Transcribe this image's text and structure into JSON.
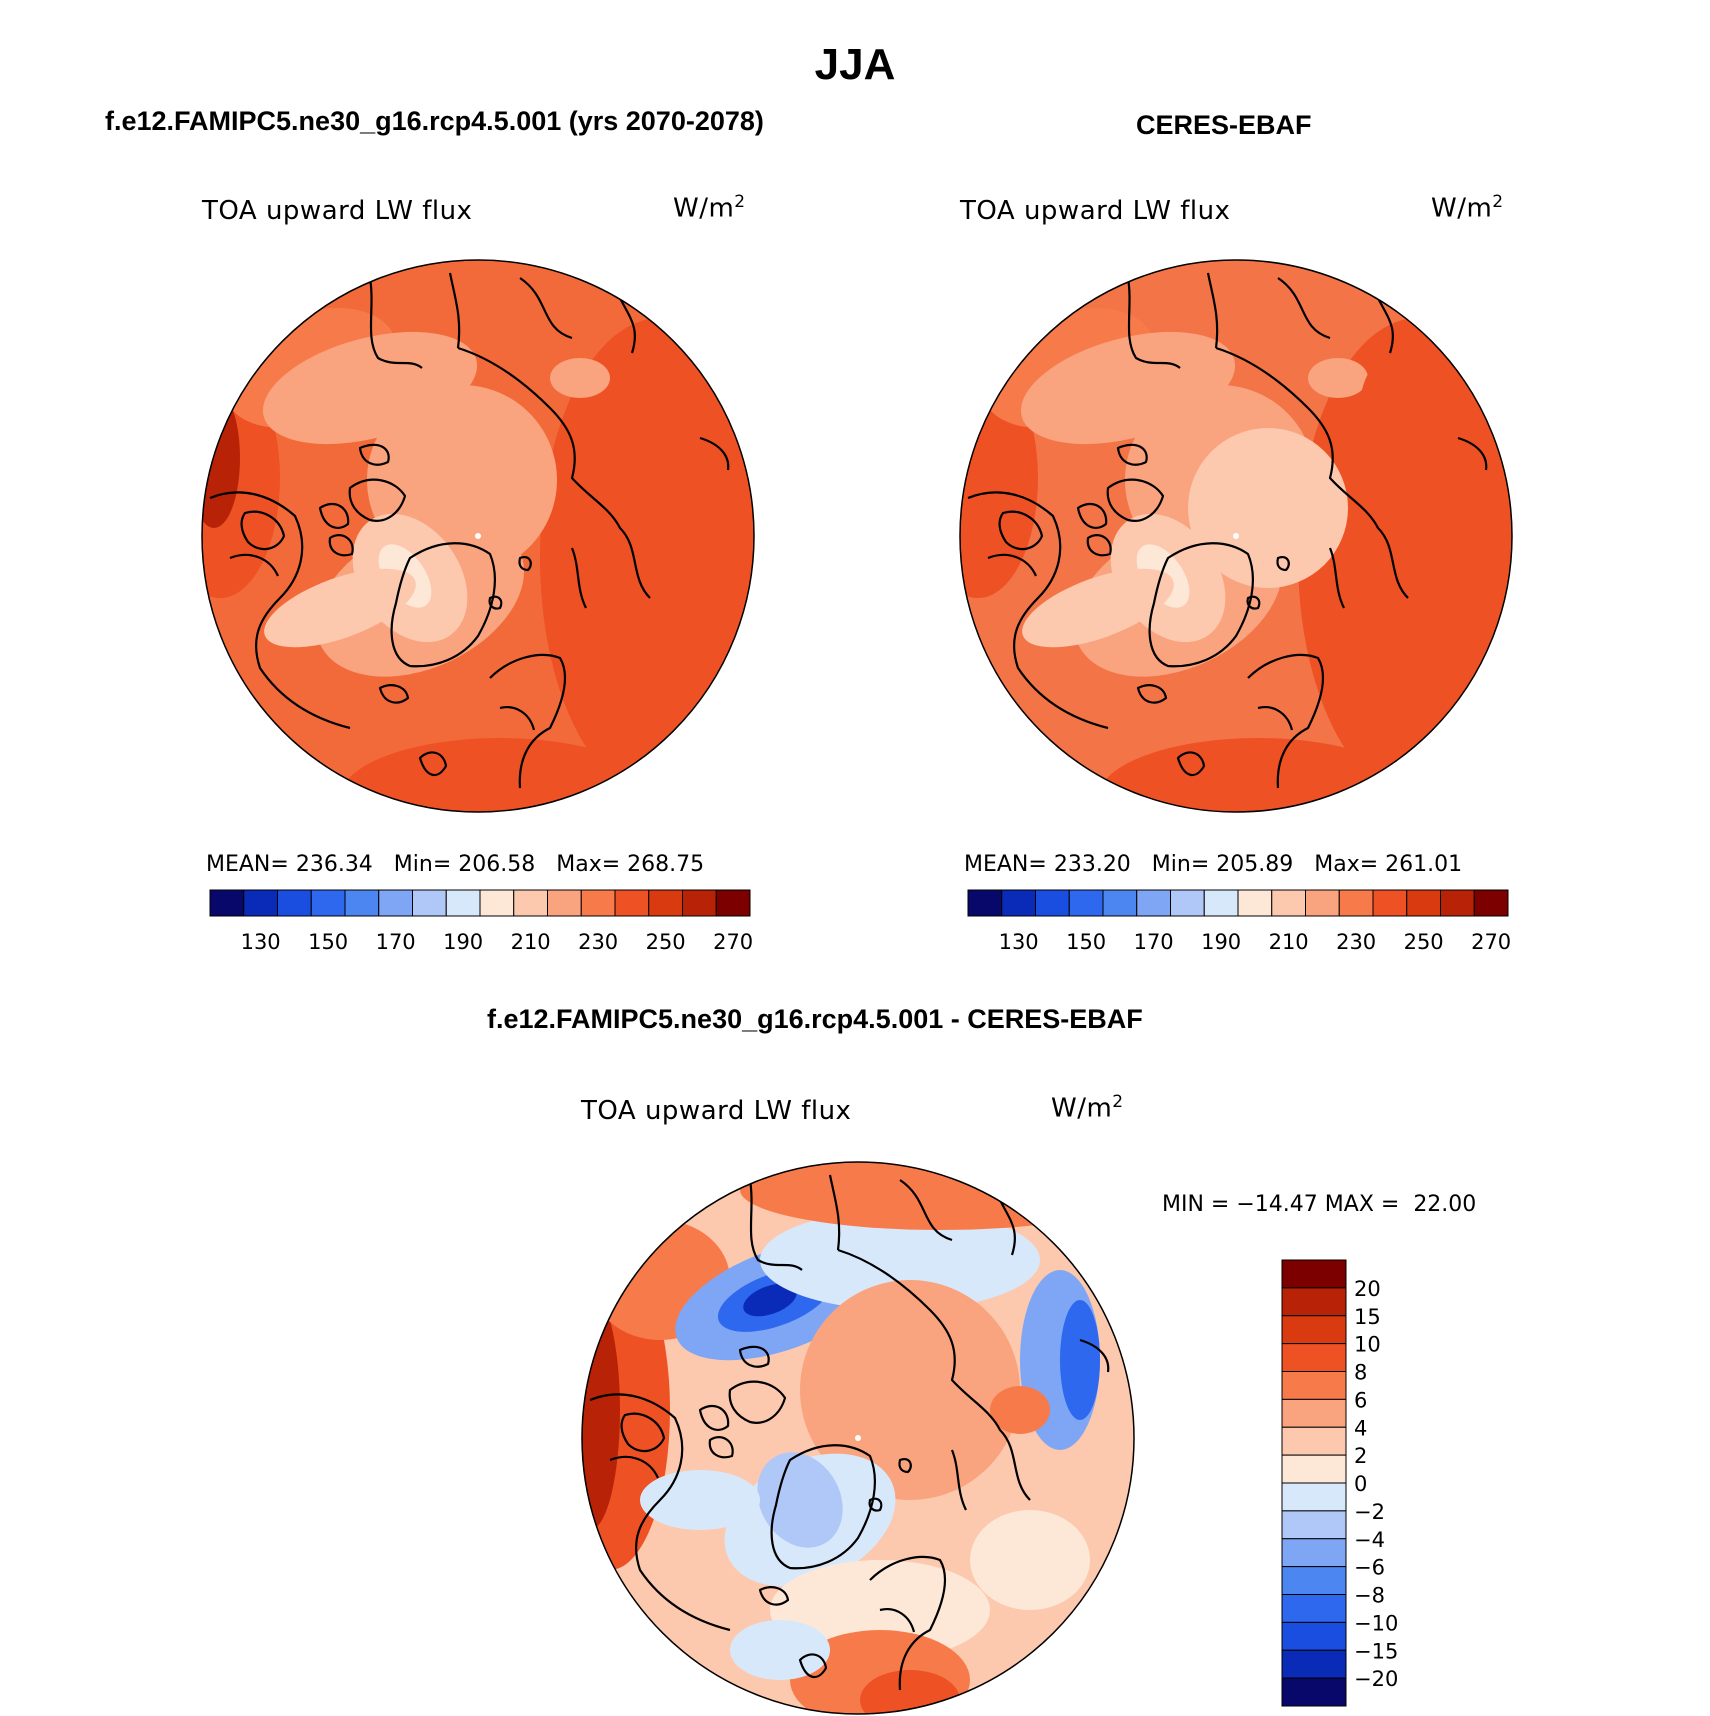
{
  "title": "JJA",
  "colors": {
    "abs_scale": [
      "#08086b",
      "#0a2ab8",
      "#1a4ee0",
      "#2e68ee",
      "#4c86f0",
      "#7ea6f5",
      "#b0c8f8",
      "#d8e8fb",
      "#fde8d8",
      "#fcc9ae",
      "#f9a47e",
      "#f77b4a",
      "#ee5123",
      "#da3a10",
      "#b82308",
      "#7d0000"
    ],
    "diff_scale": [
      "#08086b",
      "#0a2ab8",
      "#1a4ee0",
      "#2e68ee",
      "#4c86f0",
      "#7ea6f5",
      "#b0c8f8",
      "#d8e8fb",
      "#fde8d8",
      "#fcc9ae",
      "#f9a47e",
      "#f77b4a",
      "#ee5123",
      "#da3a10",
      "#b82308",
      "#7d0000"
    ],
    "land_outline": "#000000"
  },
  "panels": [
    {
      "case_title": "f.e12.FAMIPC5.ne30_g16.rcp4.5.001 (yrs 2070-2078)",
      "variable": "TOA upward LW flux",
      "unit_base": "W/m",
      "unit_exp": "2",
      "mean_label": "MEAN=",
      "mean_value": "236.34",
      "min_label": "Min=",
      "min_value": "206.58",
      "max_label": "Max=",
      "max_value": "268.75",
      "colorbar_ticks": [
        "130",
        "150",
        "170",
        "190",
        "210",
        "230",
        "250",
        "270"
      ]
    },
    {
      "case_title": "CERES-EBAF",
      "variable": "TOA upward LW flux",
      "unit_base": "W/m",
      "unit_exp": "2",
      "mean_label": "MEAN=",
      "mean_value": "233.20",
      "min_label": "Min=",
      "min_value": "205.89",
      "max_label": "Max=",
      "max_value": "261.01",
      "colorbar_ticks": [
        "130",
        "150",
        "170",
        "190",
        "210",
        "230",
        "250",
        "270"
      ]
    }
  ],
  "difference": {
    "case_title": "f.e12.FAMIPC5.ne30_g16.rcp4.5.001 - CERES-EBAF",
    "variable": "TOA upward LW flux",
    "unit_base": "W/m",
    "unit_exp": "2",
    "min_label": "MIN =",
    "min_value": "−14.47",
    "max_label": "MAX =",
    "max_value": "22.00",
    "colorbar_ticks": [
      "20",
      "15",
      "10",
      "8",
      "6",
      "4",
      "2",
      "0",
      "−2",
      "−4",
      "−6",
      "−8",
      "−10",
      "−15",
      "−20"
    ]
  }
}
